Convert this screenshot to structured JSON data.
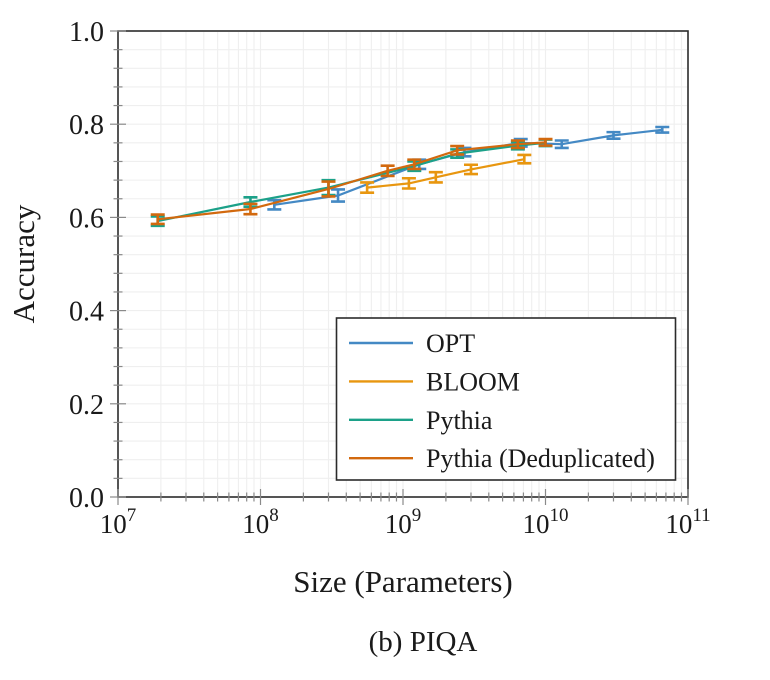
{
  "caption": "(b) PIQA",
  "chart_data": {
    "type": "line",
    "title": "",
    "xlabel": "Size (Parameters)",
    "ylabel": "Accuracy",
    "x_scale": "log",
    "xlim": [
      10000000.0,
      100000000000.0
    ],
    "ylim": [
      0.0,
      1.0
    ],
    "xticks": [
      10000000.0,
      100000000.0,
      1000000000.0,
      10000000000.0,
      100000000000.0
    ],
    "yticks": [
      0.0,
      0.2,
      0.4,
      0.6,
      0.8,
      1.0
    ],
    "y_minor_step": 0.04,
    "grid": "minor",
    "legend_position": "lower-right-inside",
    "frame_color": "#2b2b2b",
    "grid_color": "#efefef",
    "tick_color": "#8a8a8a",
    "error_bars": true,
    "series": [
      {
        "name": "OPT",
        "color": "#4489C4",
        "sizes": [
          125000000.0,
          350000000.0,
          1300000000.0,
          2700000000.0,
          6700000000.0,
          13000000000.0,
          30000000000.0,
          66000000000.0
        ],
        "accuracy": [
          0.627,
          0.647,
          0.714,
          0.74,
          0.76,
          0.757,
          0.776,
          0.788
        ],
        "err": [
          0.01,
          0.013,
          0.01,
          0.009,
          0.008,
          0.008,
          0.007,
          0.006
        ]
      },
      {
        "name": "BLOOM",
        "color": "#E8960F",
        "sizes": [
          560000000.0,
          1100000000.0,
          1700000000.0,
          3000000000.0,
          7100000000.0
        ],
        "accuracy": [
          0.664,
          0.673,
          0.686,
          0.703,
          0.725
        ],
        "err": [
          0.011,
          0.011,
          0.011,
          0.01,
          0.009
        ]
      },
      {
        "name": "Pythia",
        "color": "#1CA189",
        "sizes": [
          19000000.0,
          85000000.0,
          300000000.0,
          1200000000.0,
          2400000000.0,
          6400000000.0,
          10000000000.0
        ],
        "accuracy": [
          0.592,
          0.633,
          0.664,
          0.71,
          0.737,
          0.754,
          0.76
        ],
        "err": [
          0.01,
          0.01,
          0.016,
          0.01,
          0.009,
          0.008,
          0.007
        ]
      },
      {
        "name": "Pythia (Deduplicated)",
        "color": "#D2690E",
        "sizes": [
          19000000.0,
          85000000.0,
          300000000.0,
          780000000.0,
          1200000000.0,
          2400000000.0,
          6400000000.0,
          10000000000.0
        ],
        "accuracy": [
          0.596,
          0.618,
          0.661,
          0.7,
          0.714,
          0.744,
          0.757,
          0.761
        ],
        "err": [
          0.01,
          0.011,
          0.016,
          0.011,
          0.01,
          0.009,
          0.008,
          0.007
        ]
      }
    ]
  }
}
